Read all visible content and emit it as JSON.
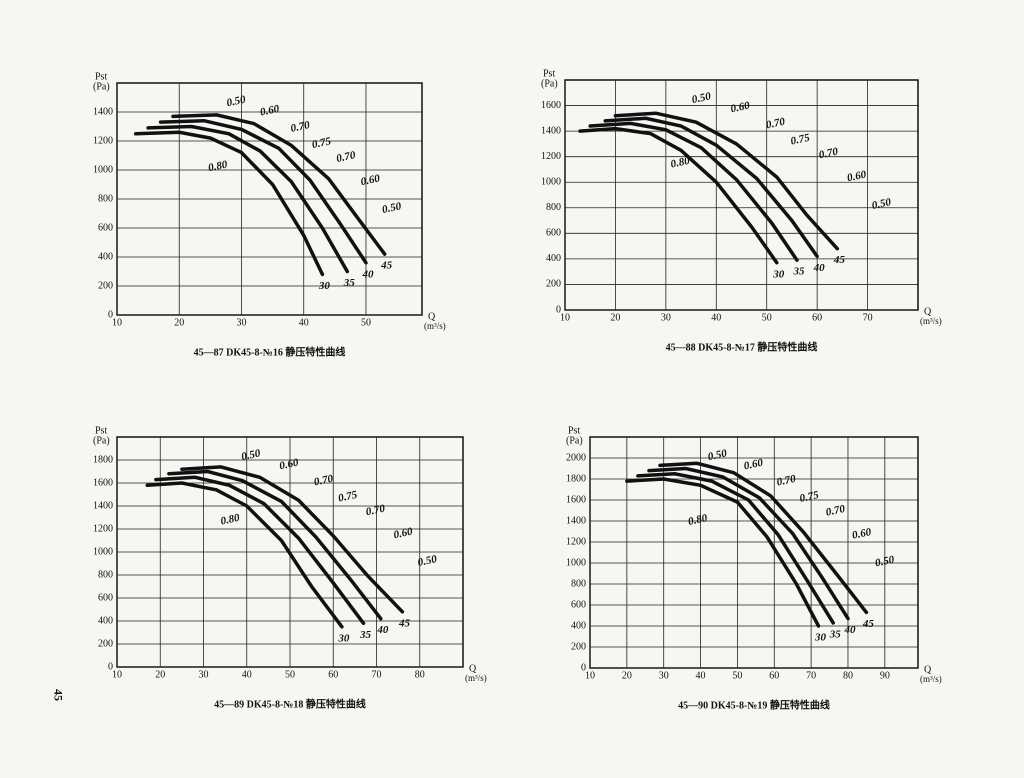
{
  "page_number": "45",
  "chart_data": [
    {
      "type": "line",
      "caption": "45—87 DK45-8-№16 静压特性曲线",
      "y_label": "Pst",
      "y_unit": "(Pa)",
      "x_label": "Q",
      "x_unit": "(m³/s)",
      "xlim": [
        10,
        59
      ],
      "ylim": [
        0,
        1600
      ],
      "xticks": [
        10,
        20,
        30,
        40,
        50
      ],
      "yticks": [
        0,
        200,
        400,
        600,
        800,
        1000,
        1200,
        1400
      ],
      "grid": true,
      "series": [
        {
          "name": "30",
          "color": "#111111",
          "x": [
            13,
            20,
            25,
            30,
            35,
            40,
            43
          ],
          "values": [
            1250,
            1260,
            1220,
            1120,
            900,
            550,
            280
          ]
        },
        {
          "name": "35",
          "color": "#111111",
          "x": [
            15,
            22,
            28,
            33,
            38,
            43,
            47
          ],
          "values": [
            1290,
            1300,
            1250,
            1130,
            920,
            600,
            300
          ]
        },
        {
          "name": "40",
          "color": "#111111",
          "x": [
            17,
            24,
            30,
            36,
            41,
            46,
            50
          ],
          "values": [
            1330,
            1340,
            1280,
            1150,
            930,
            620,
            360
          ]
        },
        {
          "name": "45",
          "color": "#111111",
          "x": [
            19,
            26,
            32,
            38,
            44,
            49,
            53
          ],
          "values": [
            1370,
            1380,
            1320,
            1170,
            940,
            650,
            420
          ]
        }
      ],
      "annotations": [
        "0.50",
        "0.60",
        "0.70",
        "0.75",
        "0.80",
        "0.70",
        "0.60",
        "0.50"
      ]
    },
    {
      "type": "line",
      "caption": "45—88 DK45-8-№17 静压特性曲线",
      "y_label": "Pst",
      "y_unit": "(Pa)",
      "x_label": "Q",
      "x_unit": "(m³/s)",
      "xlim": [
        10,
        80
      ],
      "ylim": [
        0,
        1800
      ],
      "xticks": [
        10,
        20,
        30,
        40,
        50,
        60,
        70
      ],
      "yticks": [
        0,
        200,
        400,
        600,
        800,
        1000,
        1200,
        1400,
        1600
      ],
      "grid": true,
      "series": [
        {
          "name": "30",
          "color": "#111111",
          "x": [
            13,
            20,
            27,
            33,
            40,
            47,
            52
          ],
          "values": [
            1400,
            1420,
            1380,
            1250,
            1000,
            650,
            370
          ]
        },
        {
          "name": "35",
          "color": "#111111",
          "x": [
            15,
            23,
            30,
            37,
            44,
            51,
            56
          ],
          "values": [
            1440,
            1460,
            1410,
            1270,
            1020,
            680,
            390
          ]
        },
        {
          "name": "40",
          "color": "#111111",
          "x": [
            18,
            26,
            33,
            40,
            48,
            55,
            60
          ],
          "values": [
            1480,
            1500,
            1440,
            1290,
            1030,
            700,
            420
          ]
        },
        {
          "name": "45",
          "color": "#111111",
          "x": [
            20,
            28,
            36,
            44,
            52,
            58,
            64
          ],
          "values": [
            1520,
            1540,
            1470,
            1300,
            1040,
            740,
            480
          ]
        }
      ],
      "annotations": [
        "0.50",
        "0.60",
        "0.70",
        "0.75",
        "0.80",
        "0.70",
        "0.60",
        "0.50"
      ]
    },
    {
      "type": "line",
      "caption": "45—89 DK45-8-№18 静压特性曲线",
      "y_label": "Pst",
      "y_unit": "(Pa)",
      "x_label": "Q",
      "x_unit": "(m³/s)",
      "xlim": [
        10,
        90
      ],
      "ylim": [
        0,
        2000
      ],
      "xticks": [
        10,
        20,
        30,
        40,
        50,
        60,
        70,
        80
      ],
      "yticks": [
        0,
        200,
        400,
        600,
        800,
        1000,
        1200,
        1400,
        1600,
        1800
      ],
      "grid": true,
      "series": [
        {
          "name": "30",
          "color": "#111111",
          "x": [
            17,
            25,
            33,
            40,
            48,
            55,
            62
          ],
          "values": [
            1580,
            1600,
            1540,
            1400,
            1100,
            700,
            350
          ]
        },
        {
          "name": "35",
          "color": "#111111",
          "x": [
            19,
            28,
            36,
            44,
            52,
            60,
            67
          ],
          "values": [
            1630,
            1650,
            1580,
            1420,
            1120,
            730,
            380
          ]
        },
        {
          "name": "40",
          "color": "#111111",
          "x": [
            22,
            31,
            39,
            48,
            56,
            64,
            71
          ],
          "values": [
            1680,
            1700,
            1620,
            1440,
            1130,
            760,
            420
          ]
        },
        {
          "name": "45",
          "color": "#111111",
          "x": [
            25,
            34,
            43,
            52,
            60,
            68,
            76
          ],
          "values": [
            1720,
            1740,
            1650,
            1450,
            1140,
            790,
            480
          ]
        }
      ],
      "annotations": [
        "0.50",
        "0.60",
        "0.70",
        "0.75",
        "0.80",
        "0.70",
        "0.60",
        "0.50"
      ]
    },
    {
      "type": "line",
      "caption": "45—90 DK45-8-№19 静压特性曲线",
      "y_label": "Pst",
      "y_unit": "(Pa)",
      "x_label": "Q",
      "x_unit": "(m³/s)",
      "xlim": [
        10,
        99
      ],
      "ylim": [
        0,
        2200
      ],
      "xticks": [
        10,
        20,
        30,
        40,
        50,
        60,
        70,
        80,
        90
      ],
      "yticks": [
        0,
        200,
        400,
        600,
        800,
        1000,
        1200,
        1400,
        1600,
        1800,
        2000
      ],
      "grid": true,
      "series": [
        {
          "name": "30",
          "color": "#111111",
          "x": [
            20,
            30,
            40,
            50,
            58,
            66,
            72
          ],
          "values": [
            1780,
            1800,
            1740,
            1580,
            1250,
            800,
            400
          ]
        },
        {
          "name": "35",
          "color": "#111111",
          "x": [
            23,
            33,
            43,
            53,
            61,
            69,
            76
          ],
          "values": [
            1830,
            1850,
            1780,
            1600,
            1270,
            830,
            430
          ]
        },
        {
          "name": "40",
          "color": "#111111",
          "x": [
            26,
            36,
            46,
            56,
            65,
            73,
            80
          ],
          "values": [
            1880,
            1900,
            1820,
            1620,
            1280,
            860,
            470
          ]
        },
        {
          "name": "45",
          "color": "#111111",
          "x": [
            29,
            39,
            49,
            59,
            68,
            77,
            85
          ],
          "values": [
            1930,
            1950,
            1860,
            1640,
            1290,
            890,
            530
          ]
        }
      ],
      "annotations": [
        "0.50",
        "0.60",
        "0.70",
        "0.75",
        "0.80",
        "0.70",
        "0.60",
        "0.50"
      ]
    }
  ]
}
